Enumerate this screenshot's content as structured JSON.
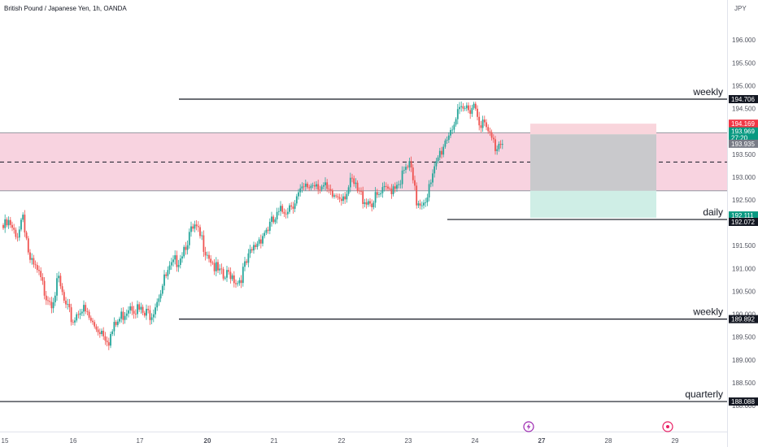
{
  "header": {
    "symbol_title": "British Pound / Japanese Yen, 1h, OANDA",
    "currency": "JPY"
  },
  "chart_data": {
    "type": "candlestick",
    "title": "British Pound / Japanese Yen, 1h, OANDA",
    "y_unit": "JPY",
    "ylim": [
      187.84,
      196.52
    ],
    "y_ticks": [
      "196.000",
      "195.500",
      "195.000",
      "194.500",
      "194.000",
      "193.500",
      "193.000",
      "192.500",
      "192.000",
      "191.500",
      "191.000",
      "190.500",
      "190.000",
      "189.500",
      "189.000",
      "188.500",
      "188.000"
    ],
    "x_ticks": [
      "15",
      "16",
      "17",
      "20",
      "21",
      "22",
      "23",
      "24",
      "27",
      "28",
      "29"
    ],
    "x_ticks_bold": [
      "20",
      "27"
    ],
    "grid": false,
    "price_path": [
      [
        "15",
        191.95
      ],
      [
        "15",
        192.05
      ],
      [
        "15",
        191.75
      ],
      [
        "15",
        192.3
      ],
      [
        "15",
        191.2
      ],
      [
        "15",
        191.0
      ],
      [
        "15",
        190.6
      ],
      [
        "16",
        190.4
      ],
      [
        "16",
        190.8
      ],
      [
        "16",
        190.2
      ],
      [
        "16",
        189.95
      ],
      [
        "16",
        190.25
      ],
      [
        "16",
        190.05
      ],
      [
        "16",
        189.8
      ],
      [
        "17",
        189.75
      ],
      [
        "17",
        189.55
      ],
      [
        "17",
        189.85
      ],
      [
        "17",
        190.1
      ],
      [
        "17",
        190.35
      ],
      [
        "17",
        190.2
      ],
      [
        "17",
        190.05
      ],
      [
        "20",
        190.15
      ],
      [
        "20",
        190.55
      ],
      [
        "20",
        190.9
      ],
      [
        "20",
        191.15
      ],
      [
        "20",
        191.4
      ],
      [
        "20",
        191.75
      ],
      [
        "20",
        191.95
      ],
      [
        "21",
        191.7
      ],
      [
        "21",
        191.4
      ],
      [
        "21",
        191.05
      ],
      [
        "21",
        190.85
      ],
      [
        "21",
        191.0
      ],
      [
        "21",
        190.8
      ],
      [
        "21",
        191.1
      ],
      [
        "21",
        191.45
      ],
      [
        "21",
        191.75
      ],
      [
        "21",
        191.95
      ],
      [
        "21",
        192.1
      ],
      [
        "21",
        192.3
      ],
      [
        "22",
        192.45
      ],
      [
        "22",
        192.6
      ],
      [
        "22",
        192.75
      ],
      [
        "22",
        192.9
      ],
      [
        "22",
        193.0
      ],
      [
        "22",
        192.85
      ],
      [
        "22",
        192.65
      ],
      [
        "22",
        192.7
      ],
      [
        "22",
        192.75
      ],
      [
        "23",
        192.95
      ],
      [
        "23",
        192.7
      ],
      [
        "23",
        192.6
      ],
      [
        "23",
        192.55
      ],
      [
        "23",
        192.7
      ],
      [
        "23",
        192.8
      ],
      [
        "23",
        192.95
      ],
      [
        "23",
        193.1
      ],
      [
        "23",
        193.35
      ],
      [
        "24",
        192.55
      ],
      [
        "24",
        192.6
      ],
      [
        "24",
        192.9
      ],
      [
        "24",
        193.5
      ],
      [
        "24",
        193.9
      ],
      [
        "24",
        194.25
      ],
      [
        "24",
        194.45
      ],
      [
        "24",
        194.6
      ],
      [
        "24",
        194.7
      ],
      [
        "24",
        194.3
      ],
      [
        "24",
        194.05
      ],
      [
        "24",
        193.75
      ],
      [
        "24",
        193.95
      ]
    ],
    "levels": [
      {
        "label": "weekly",
        "price": 194.706
      },
      {
        "label": "daily",
        "price": 192.072
      },
      {
        "label": "weekly",
        "price": 189.892
      },
      {
        "label": "quarterly",
        "price": 188.088
      }
    ],
    "zone": {
      "upper": 193.969,
      "lower": 192.7,
      "mid": 193.33
    },
    "position": {
      "entry": 193.935,
      "stop": 194.169,
      "target": 192.111
    },
    "axis_labels": [
      {
        "text": "194.706",
        "price": 194.706,
        "color": "#131722"
      },
      {
        "text": "194.169",
        "price": 194.169,
        "color": "#f23645"
      },
      {
        "text": "193.969",
        "price": 194.0,
        "color": "#089981"
      },
      {
        "text": "27:20",
        "price": 193.865,
        "color": "#089981"
      },
      {
        "text": "193.935",
        "price": 193.73,
        "color": "#787b86"
      },
      {
        "text": "192.111",
        "price": 192.16,
        "color": "#089981"
      },
      {
        "text": "192.072",
        "price": 192.02,
        "color": "#131722"
      },
      {
        "text": "189.892",
        "price": 189.892,
        "color": "#131722"
      },
      {
        "text": "188.088",
        "price": 188.088,
        "color": "#131722"
      }
    ]
  },
  "colors": {
    "up": "#26a69a",
    "down": "#ef5350",
    "zone_fill": "#f8d3e0",
    "zone_line": "#9598a1",
    "stop_fill": "#f9d5dc",
    "target_fill": "#cfeee6",
    "overlap_fill": "#c9c9cc"
  },
  "events": [
    {
      "icon": "lightning-event-icon",
      "x_label": "27"
    },
    {
      "icon": "target-event-icon",
      "x_label": "29"
    }
  ]
}
